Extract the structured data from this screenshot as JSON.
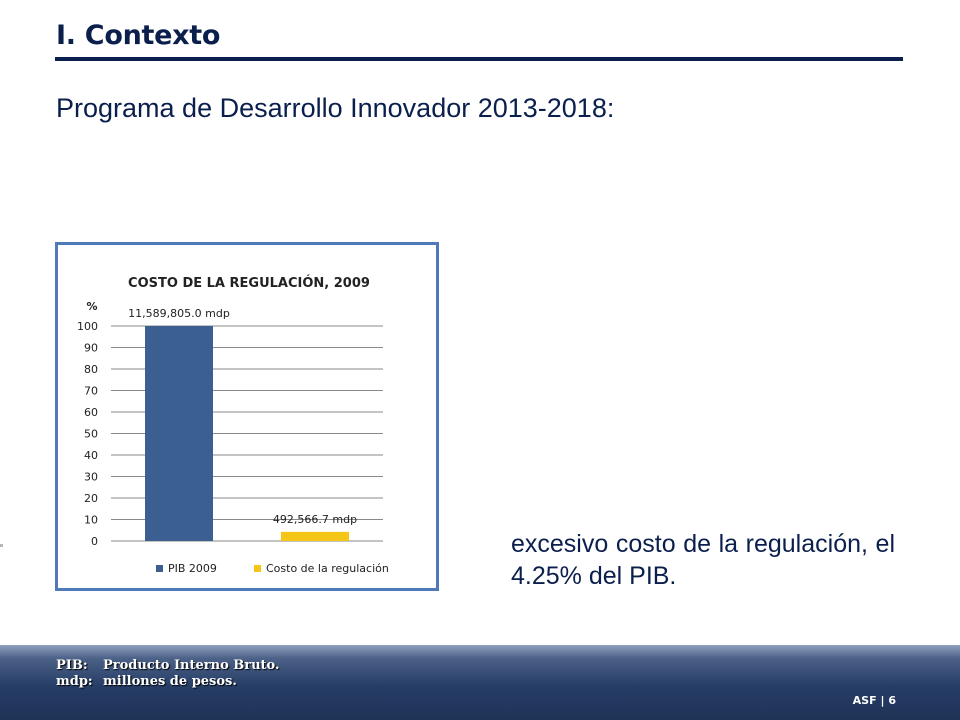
{
  "slide": {
    "title": "I. Contexto",
    "subtitle": "Programa de Desarrollo Innovador 2013-2018:",
    "body_text": "excesivo costo de la regulación, el 4.25% del PIB."
  },
  "colors": {
    "title": "#0b1f4d",
    "chart_frame": "#4f79b8",
    "bar_pib": "#3c5f92",
    "bar_costo": "#f5c518",
    "footer": "#263d66"
  },
  "chart_data": {
    "type": "bar",
    "title": "COSTO DE LA REGULACIÓN, 2009",
    "ylabel": "%",
    "ylim": [
      0,
      100
    ],
    "yticks": [
      "0",
      "10",
      "20",
      "30",
      "40",
      "50",
      "60",
      "70",
      "80",
      "90",
      "100"
    ],
    "grid": true,
    "legend_position": "bottom",
    "series": [
      {
        "name": "PIB 2009",
        "value": 100,
        "label": "11,589,805.0 mdp",
        "color": "#3c5f92"
      },
      {
        "name": "Costo de la regulación",
        "value": 4.25,
        "label": "492,566.7  mdp",
        "color": "#f5c518"
      }
    ]
  },
  "footer": {
    "notes": [
      {
        "term": "PIB:",
        "definition": "Producto Interno Bruto."
      },
      {
        "term": "mdp:",
        "definition": "millones de pesos."
      }
    ],
    "org": "ASF",
    "separator": "|",
    "page_number": "6"
  }
}
